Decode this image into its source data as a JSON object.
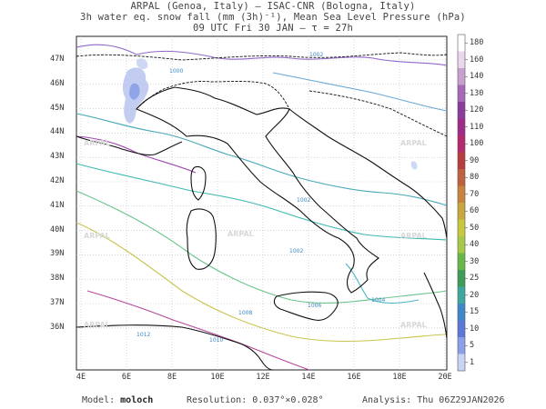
{
  "header": {
    "line1": "ARPAL (Genoa, Italy)  —  ISAC-CNR (Bologna, Italy)",
    "line2": "3h water eq. snow fall (mm (3h)⁻¹), Mean Sea Level Pressure (hPa)",
    "line3": "09 UTC Fri 30 JAN  —  τ = 27h"
  },
  "lat_labels": [
    "47N",
    "46N",
    "45N",
    "44N",
    "43N",
    "42N",
    "41N",
    "40N",
    "39N",
    "38N",
    "37N",
    "36N"
  ],
  "lon_labels": [
    "4E",
    "6E",
    "8E",
    "10E",
    "12E",
    "14E",
    "16E",
    "18E",
    "20E"
  ],
  "colorbar": {
    "labels": [
      "180",
      "160",
      "140",
      "130",
      "120",
      "110",
      "100",
      "90",
      "80",
      "70",
      "60",
      "50",
      "40",
      "30",
      "25",
      "20",
      "15",
      "10",
      "5",
      "1"
    ],
    "colors": [
      "#ffffff",
      "#e9d8ec",
      "#c8a0d0",
      "#a868b8",
      "#8c3c9c",
      "#a02a8a",
      "#b8286e",
      "#b83c3c",
      "#c0603c",
      "#c8843c",
      "#c8a83c",
      "#c8c83c",
      "#a8c848",
      "#68b848",
      "#3c9c58",
      "#3ca8a0",
      "#3c88c8",
      "#5c78d8",
      "#8aa0e8",
      "#c8d4f4"
    ]
  },
  "isobar_labels": [
    "1000",
    "1002",
    "1002",
    "1002",
    "1004",
    "1006",
    "1008",
    "1010",
    "1012"
  ],
  "watermark": "ARPAL",
  "footer": {
    "model_label": "Model:",
    "model_name": "moloch",
    "resolution_label": "Resolution:",
    "resolution_value": "0.037°×0.028°",
    "analysis_label": "Analysis:",
    "analysis_value": "Thu 06Z29JAN2026"
  }
}
